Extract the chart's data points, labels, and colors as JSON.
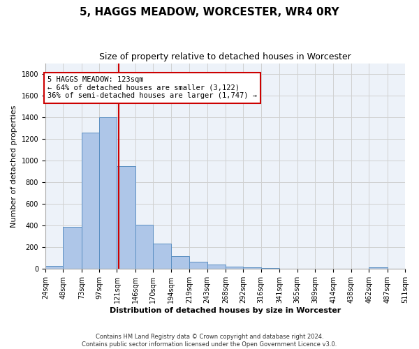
{
  "title1": "5, HAGGS MEADOW, WORCESTER, WR4 0RY",
  "title2": "Size of property relative to detached houses in Worcester",
  "xlabel": "Distribution of detached houses by size in Worcester",
  "ylabel": "Number of detached properties",
  "bar_left_edges": [
    24,
    48,
    73,
    97,
    121,
    146,
    170,
    194,
    219,
    243,
    268,
    292,
    316,
    341,
    365,
    389,
    414,
    438,
    462,
    487
  ],
  "bar_widths": [
    24,
    25,
    24,
    24,
    25,
    24,
    24,
    25,
    24,
    25,
    24,
    24,
    25,
    24,
    24,
    25,
    24,
    24,
    25,
    24
  ],
  "bar_heights": [
    25,
    390,
    1260,
    1400,
    950,
    410,
    235,
    120,
    65,
    40,
    20,
    15,
    10,
    5,
    0,
    0,
    0,
    0,
    15,
    0
  ],
  "tick_labels": [
    "24sqm",
    "48sqm",
    "73sqm",
    "97sqm",
    "121sqm",
    "146sqm",
    "170sqm",
    "194sqm",
    "219sqm",
    "243sqm",
    "268sqm",
    "292sqm",
    "316sqm",
    "341sqm",
    "365sqm",
    "389sqm",
    "414sqm",
    "438sqm",
    "462sqm",
    "487sqm",
    "511sqm"
  ],
  "bar_color": "#aec6e8",
  "bar_edge_color": "#5a8fc2",
  "vline_x": 123,
  "vline_color": "#cc0000",
  "annotation_box_color": "#cc0000",
  "annotation_lines": [
    "5 HAGGS MEADOW: 123sqm",
    "← 64% of detached houses are smaller (3,122)",
    "36% of semi-detached houses are larger (1,747) →"
  ],
  "ylim": [
    0,
    1900
  ],
  "yticks": [
    0,
    200,
    400,
    600,
    800,
    1000,
    1200,
    1400,
    1600,
    1800
  ],
  "grid_color": "#d0d0d0",
  "bg_color": "#edf2f9",
  "footer1": "Contains HM Land Registry data © Crown copyright and database right 2024.",
  "footer2": "Contains public sector information licensed under the Open Government Licence v3.0.",
  "title1_fontsize": 11,
  "title2_fontsize": 9,
  "ylabel_fontsize": 8,
  "xlabel_fontsize": 8,
  "tick_fontsize": 7,
  "footer_fontsize": 6
}
